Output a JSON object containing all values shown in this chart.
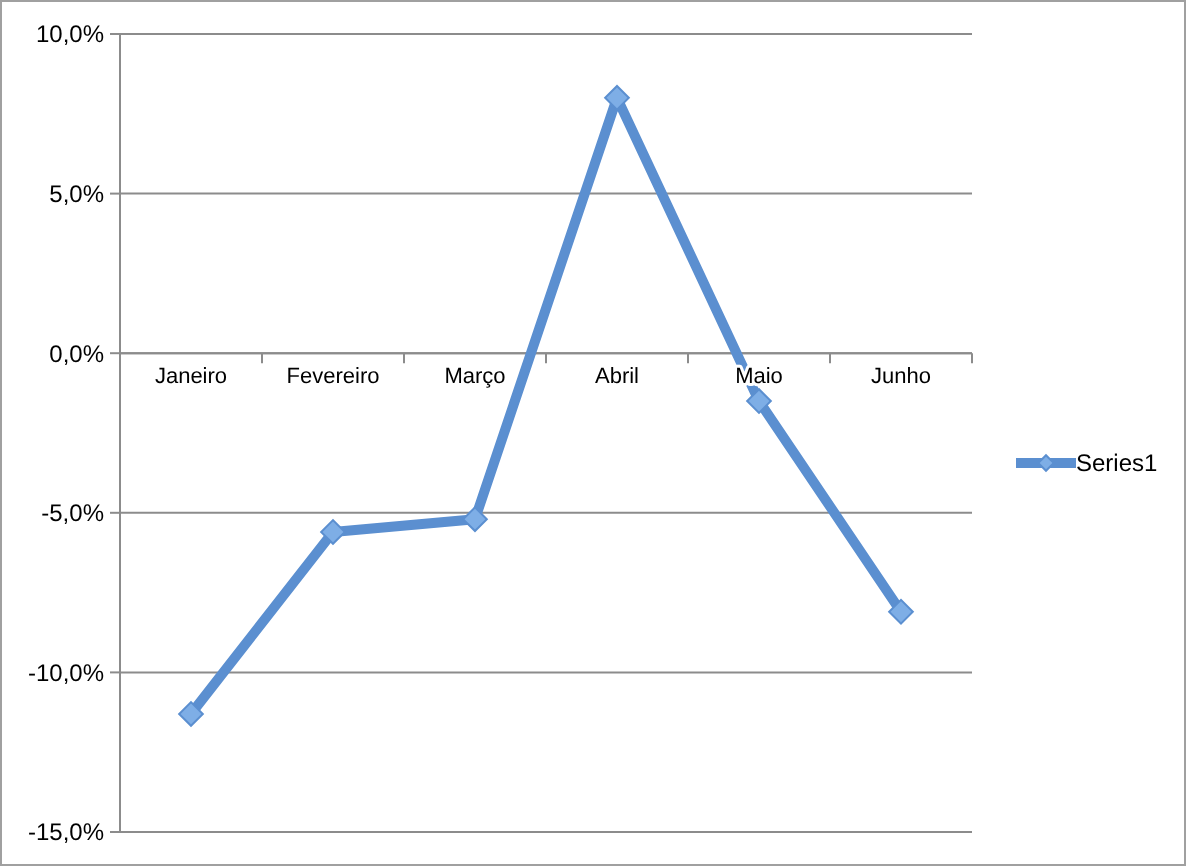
{
  "chart_data": {
    "type": "line",
    "categories": [
      "Janeiro",
      "Fevereiro",
      "Março",
      "Abril",
      "Maio",
      "Junho"
    ],
    "series": [
      {
        "name": "Series1",
        "color": "#5b8fd0",
        "values": [
          -11.3,
          -5.6,
          -5.2,
          8.0,
          -1.5,
          -8.1
        ]
      }
    ],
    "ylim": [
      -15,
      10
    ],
    "yticks": [
      {
        "value": -15,
        "label": "-15,0%"
      },
      {
        "value": -10,
        "label": "-10,0%"
      },
      {
        "value": -5,
        "label": "-5,0%"
      },
      {
        "value": 0,
        "label": "0,0%"
      },
      {
        "value": 5,
        "label": "5,0%"
      },
      {
        "value": 10,
        "label": "10,0%"
      }
    ],
    "grid": "y",
    "legend": "right",
    "marker": "diamond",
    "line_style": "solid"
  }
}
